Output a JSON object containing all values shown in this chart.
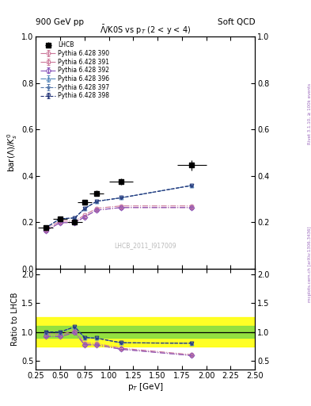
{
  "title_left": "900 GeV pp",
  "title_right": "Soft QCD",
  "plot_title": "$\\bar{\\Lambda}$/K0S vs p$_{T}$ (2 < y < 4)",
  "ylabel_main": "bar($\\Lambda$)/$K^{0}_{s}$",
  "ylabel_ratio": "Ratio to LHCB",
  "xlabel": "p$_{T}$ [GeV]",
  "watermark": "LHCB_2011_I917009",
  "right_label_top": "Rivet 3.1.10, ≥ 100k events",
  "right_label_bot": "mcplots.cern.ch [arXiv:1306.3436]",
  "xlim": [
    0.25,
    2.5
  ],
  "ylim_main": [
    0.0,
    1.0
  ],
  "ylim_ratio": [
    0.35,
    2.1
  ],
  "lhcb_x": [
    0.35,
    0.5,
    0.65,
    0.75,
    0.875,
    1.125,
    1.85
  ],
  "lhcb_y": [
    0.175,
    0.215,
    0.2,
    0.285,
    0.325,
    0.375,
    0.445
  ],
  "lhcb_yerr": [
    0.008,
    0.008,
    0.008,
    0.01,
    0.012,
    0.015,
    0.022
  ],
  "lhcb_xerr": [
    0.075,
    0.075,
    0.075,
    0.075,
    0.075,
    0.125,
    0.15
  ],
  "pythia_x": [
    0.35,
    0.5,
    0.65,
    0.75,
    0.875,
    1.125,
    1.85
  ],
  "p390_y": [
    0.17,
    0.205,
    0.205,
    0.23,
    0.26,
    0.27,
    0.27
  ],
  "p391_y": [
    0.162,
    0.198,
    0.198,
    0.222,
    0.252,
    0.263,
    0.263
  ],
  "p392_y": [
    0.162,
    0.198,
    0.198,
    0.222,
    0.252,
    0.263,
    0.263
  ],
  "p396_y": [
    0.175,
    0.215,
    0.218,
    0.258,
    0.29,
    0.305,
    0.358
  ],
  "p397_y": [
    0.175,
    0.215,
    0.218,
    0.258,
    0.29,
    0.305,
    0.358
  ],
  "p398_y": [
    0.175,
    0.215,
    0.218,
    0.258,
    0.29,
    0.305,
    0.358
  ],
  "p390_yerr": [
    0.003,
    0.003,
    0.003,
    0.003,
    0.003,
    0.003,
    0.004
  ],
  "p391_yerr": [
    0.003,
    0.003,
    0.003,
    0.003,
    0.003,
    0.003,
    0.004
  ],
  "p392_yerr": [
    0.003,
    0.003,
    0.003,
    0.003,
    0.003,
    0.003,
    0.004
  ],
  "p396_yerr": [
    0.003,
    0.003,
    0.003,
    0.003,
    0.003,
    0.003,
    0.004
  ],
  "p397_yerr": [
    0.003,
    0.003,
    0.003,
    0.003,
    0.003,
    0.003,
    0.004
  ],
  "p398_yerr": [
    0.003,
    0.003,
    0.003,
    0.003,
    0.003,
    0.003,
    0.004
  ],
  "colors": {
    "p390": "#cc7799",
    "p391": "#cc7799",
    "p392": "#8855bb",
    "p396": "#5588bb",
    "p397": "#5577aa",
    "p398": "#223377"
  },
  "markers": {
    "p390": "o",
    "p391": "s",
    "p392": "D",
    "p396": "^",
    "p397": "*",
    "p398": "v"
  },
  "linestyles": {
    "p390": "-.",
    "p391": "-.",
    "p392": "-.",
    "p396": "-.",
    "p397": "--",
    "p398": "--"
  },
  "legend_labels": {
    "lhcb": "LHCB",
    "p390": "Pythia 6.428 390",
    "p391": "Pythia 6.428 391",
    "p392": "Pythia 6.428 392",
    "p396": "Pythia 6.428 396",
    "p397": "Pythia 6.428 397",
    "p398": "Pythia 6.428 398"
  },
  "band_green_lo": 0.9,
  "band_green_hi": 1.1,
  "band_yellow_lo": 0.75,
  "band_yellow_hi": 1.25,
  "main_yticks": [
    0.0,
    0.2,
    0.4,
    0.6,
    0.8,
    1.0
  ],
  "ratio_yticks": [
    0.5,
    1.0,
    1.5,
    2.0
  ]
}
